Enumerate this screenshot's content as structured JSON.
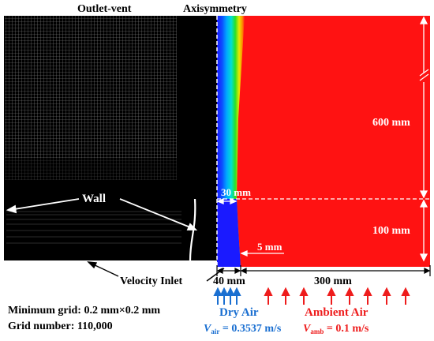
{
  "labels": {
    "outlet_vent": "Outlet-vent",
    "axisymmetry": "Axisymmetry",
    "wall": "Wall",
    "velocity_inlet": "Velocity Inlet",
    "dim_600": "600 mm",
    "dim_100": "100 mm",
    "dim_30": "30 mm",
    "dim_5": "5 mm",
    "dim_40": "40 mm",
    "dim_300": "300 mm",
    "min_grid": "Minimum grid: 0.2 mm×0.2 mm",
    "grid_number": "Grid number: 110,000",
    "dry_air": "Dry Air",
    "ambient_air": "Ambient Air",
    "v_air_sym": "V",
    "v_air_sub": "air",
    "v_air_val": " = 0.3537 m/s",
    "v_amb_sym": "V",
    "v_amb_sub": "amb",
    "v_amb_val": " = 0.1 m/s"
  },
  "colors": {
    "dry_air": "#1a6fd1",
    "ambient": "#ee1c1c",
    "mesh": "#000000"
  }
}
